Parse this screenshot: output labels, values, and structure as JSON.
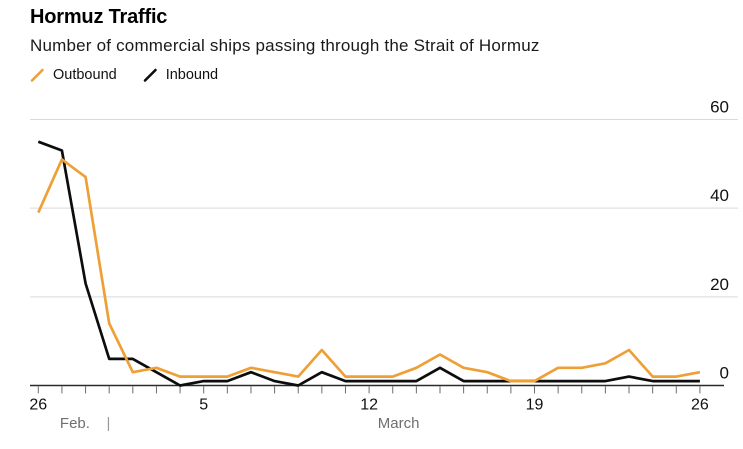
{
  "header": {
    "title": "Hormuz Traffic",
    "subtitle": "Number of commercial ships passing through the Strait of Hormuz"
  },
  "legend": {
    "items": [
      {
        "label": "Outbound",
        "color": "#eea037",
        "icon": "slash-line-icon"
      },
      {
        "label": "Inbound",
        "color": "#0d0d0d",
        "icon": "slash-line-icon"
      }
    ]
  },
  "colors": {
    "outbound": "#eea037",
    "inbound": "#0d0d0d",
    "gridline": "#d9d9d9",
    "axis": "#2a2a2a",
    "tick": "#6b6b6b",
    "tick_label": "#111111",
    "month_label": "#6f6f6f"
  },
  "chart_data": {
    "type": "line",
    "title": "Hormuz Traffic",
    "subtitle": "Number of commercial ships passing through the Strait of Hormuz",
    "xlabel": "",
    "ylabel": "",
    "ylim": [
      0,
      60
    ],
    "y_ticks": [
      0,
      20,
      40,
      60
    ],
    "grid": "horizontal",
    "legend_position": "top-left",
    "x": [
      "Feb. 26",
      "Feb. 27",
      "Feb. 28",
      "March 1",
      "March 2",
      "March 3",
      "March 4",
      "March 5",
      "March 6",
      "March 7",
      "March 8",
      "March 9",
      "March 10",
      "March 11",
      "March 12",
      "March 13",
      "March 14",
      "March 15",
      "March 16",
      "March 17",
      "March 18",
      "March 19",
      "March 20",
      "March 21",
      "March 22",
      "March 23",
      "March 24",
      "March 25",
      "March 26"
    ],
    "series": [
      {
        "name": "Outbound",
        "color": "#eea037",
        "values": [
          39,
          51,
          47,
          14,
          3,
          4,
          2,
          2,
          2,
          4,
          3,
          2,
          8,
          2,
          2,
          2,
          4,
          7,
          4,
          3,
          1,
          1,
          4,
          4,
          5,
          8,
          2,
          2,
          3
        ]
      },
      {
        "name": "Inbound",
        "color": "#0d0d0d",
        "values": [
          55,
          53,
          23,
          6,
          6,
          3,
          0,
          1,
          1,
          3,
          1,
          0,
          3,
          1,
          1,
          1,
          1,
          4,
          1,
          1,
          1,
          1,
          1,
          1,
          1,
          2,
          1,
          1,
          1
        ]
      }
    ],
    "x_tick_labels": [
      {
        "index": 0,
        "label": "26"
      },
      {
        "index": 7,
        "label": "5"
      },
      {
        "index": 14,
        "label": "12"
      },
      {
        "index": 21,
        "label": "19"
      },
      {
        "index": 28,
        "label": "26"
      }
    ],
    "month_labels": [
      {
        "label": "Feb.",
        "x_index": 1.55,
        "divider": false
      },
      {
        "label": "|",
        "x_index": 2.97,
        "divider": true
      },
      {
        "label": "March",
        "x_index": 15.25,
        "divider": false
      }
    ]
  }
}
